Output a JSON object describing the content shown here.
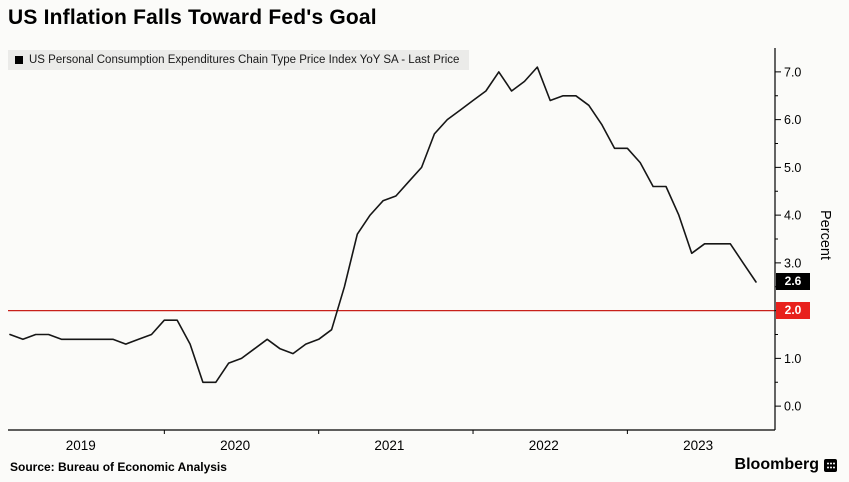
{
  "title": "US Inflation Falls Toward Fed's Goal",
  "legend": {
    "swatch": "black-square",
    "label": "US Personal Consumption Expenditures Chain Type Price Index YoY SA - Last Price"
  },
  "annotations": {
    "last_price": "2.6",
    "fed_target": "2.0"
  },
  "footer": {
    "source": "Source: Bureau of Economic Analysis",
    "brand": "Bloomberg"
  },
  "colors": {
    "line": "#161616",
    "target_line": "#c8201a",
    "last_badge_bg": "#000000",
    "last_badge_text": "#ffffff",
    "target_badge_bg": "#e8211d",
    "target_badge_text": "#ffffff",
    "axis": "#000000",
    "legend_bg": "#ebebe9",
    "background": "#fbfbf9"
  },
  "chart_data": {
    "type": "line",
    "title": "US Inflation Falls Toward Fed's Goal",
    "ylabel": "Percent",
    "ylim": [
      -0.5,
      7.5
    ],
    "y_ticks": [
      0,
      1,
      2,
      3,
      4,
      5,
      6,
      7
    ],
    "x_tick_labels": [
      "2019",
      "2020",
      "2021",
      "2022",
      "2023"
    ],
    "x_tick_month_positions": [
      5.5,
      17.5,
      29.5,
      41.5,
      53.5
    ],
    "x_boundary_tick_indices": [
      12,
      24,
      36,
      48
    ],
    "x_start": "2019-01",
    "x_end": "2023-11",
    "grid": false,
    "legend_position": "top-left",
    "reference_line": 2.0,
    "last_value": 2.6,
    "series": [
      {
        "name": "US Personal Consumption Expenditures Chain Type Price Index YoY SA",
        "values": [
          1.5,
          1.4,
          1.5,
          1.5,
          1.4,
          1.4,
          1.4,
          1.4,
          1.4,
          1.3,
          1.4,
          1.5,
          1.8,
          1.8,
          1.3,
          0.5,
          0.5,
          0.9,
          1.0,
          1.2,
          1.4,
          1.2,
          1.1,
          1.3,
          1.4,
          1.6,
          2.5,
          3.6,
          4.0,
          4.3,
          4.4,
          4.7,
          5.0,
          5.7,
          6.0,
          6.2,
          6.4,
          6.6,
          7.0,
          6.6,
          6.8,
          7.1,
          6.4,
          6.5,
          6.5,
          6.3,
          5.9,
          5.4,
          5.4,
          5.1,
          4.6,
          4.6,
          4.0,
          3.2,
          3.4,
          3.4,
          3.4,
          3.0,
          2.6
        ]
      }
    ]
  }
}
